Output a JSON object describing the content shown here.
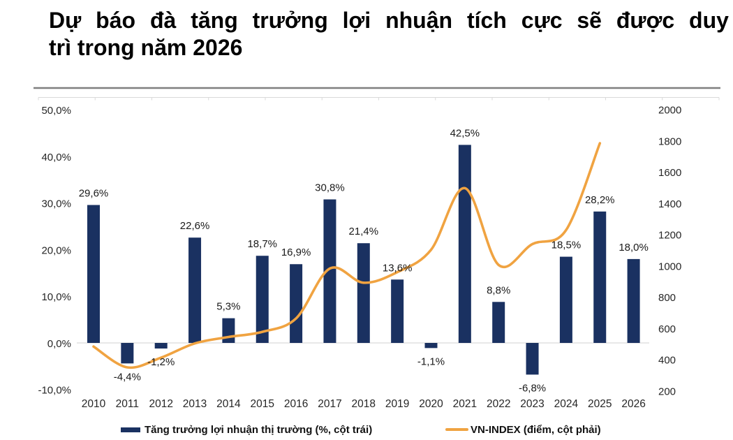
{
  "title": {
    "line1": "Dự báo đà tăng trưởng lợi nhuận tích cực sẽ được duy",
    "line2": "trì trong năm 2026"
  },
  "colors": {
    "bar": "#1A3161",
    "line": "#F0A341",
    "grid": "#D9D9D9",
    "top_border": "#7F7F7F",
    "text": "#262626"
  },
  "chart_data": {
    "type": "bar",
    "subtype": "combo bar+line, dual axis",
    "categories": [
      "2010",
      "2011",
      "2012",
      "2013",
      "2014",
      "2015",
      "2016",
      "2017",
      "2018",
      "2019",
      "2020",
      "2021",
      "2022",
      "2023",
      "2024",
      "2025",
      "2026"
    ],
    "series": [
      {
        "name": "Tăng trưởng lợi nhuận thị trường (%, cột trái)",
        "type": "bar",
        "axis": "left",
        "values": [
          29.6,
          -4.4,
          -1.2,
          22.6,
          5.3,
          18.7,
          16.9,
          30.8,
          21.4,
          13.6,
          -1.1,
          42.5,
          8.8,
          -6.8,
          18.5,
          28.2,
          18.0
        ],
        "labels": [
          "29,6%",
          "-4,4%",
          "-1,2%",
          "22,6%",
          "5,3%",
          "18,7%",
          "16,9%",
          "30,8%",
          "21,4%",
          "13,6%",
          "-1,1%",
          "42,5%",
          "8,8%",
          "-6,8%",
          "18,5%",
          "28,2%",
          "18,0%"
        ]
      },
      {
        "name": "VN-INDEX (điểm, cột phải)",
        "type": "line",
        "axis": "right",
        "x": [
          "2010",
          "2011",
          "2012",
          "2013",
          "2014",
          "2015",
          "2016",
          "2017",
          "2018",
          "2019",
          "2020",
          "2021",
          "2022",
          "2023",
          "2024",
          "2025"
        ],
        "values": [
          485,
          352,
          414,
          505,
          546,
          579,
          665,
          984,
          893,
          961,
          1104,
          1498,
          1007,
          1140,
          1230,
          1785
        ]
      }
    ],
    "left_axis": {
      "ticks": [
        "50,0%",
        "40,0%",
        "30,0%",
        "20,0%",
        "10,0%",
        "0,0%",
        "-10,0%"
      ],
      "values": [
        50,
        40,
        30,
        20,
        10,
        0,
        -10
      ],
      "range": [
        -10,
        50
      ]
    },
    "right_axis": {
      "ticks": [
        "2000",
        "1800",
        "1600",
        "1400",
        "1200",
        "1000",
        "800",
        "600",
        "400",
        "200"
      ],
      "values": [
        2000,
        1800,
        1600,
        1400,
        1200,
        1000,
        800,
        600,
        400,
        200
      ],
      "range": [
        200,
        2000
      ]
    },
    "legend": [
      "Tăng trưởng lợi nhuận thị trường (%, cột trái)",
      "VN-INDEX (điểm, cột phải)"
    ],
    "grid": "zero-line only",
    "legend_position": "bottom"
  }
}
